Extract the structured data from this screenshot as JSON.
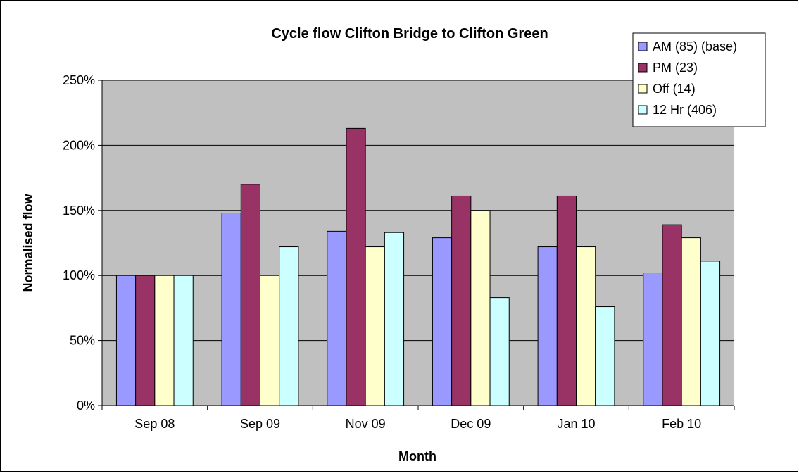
{
  "chart_data": {
    "type": "bar",
    "title": "Cycle flow Clifton Bridge to Clifton Green",
    "xlabel": "Month",
    "ylabel": "Normalised flow",
    "categories": [
      "Sep 08",
      "Sep 09",
      "Nov 09",
      "Dec 09",
      "Jan 10",
      "Feb 10"
    ],
    "series": [
      {
        "name": "AM (85) (base)",
        "color": "#9999FF",
        "values": [
          100,
          148,
          134,
          129,
          122,
          102
        ]
      },
      {
        "name": "PM (23)",
        "color": "#993366",
        "values": [
          100,
          170,
          213,
          161,
          161,
          139
        ]
      },
      {
        "name": "Off (14)",
        "color": "#FFFFCC",
        "values": [
          100,
          100,
          122,
          150,
          122,
          129
        ]
      },
      {
        "name": "12 Hr (406)",
        "color": "#CCFFFF",
        "values": [
          100,
          122,
          133,
          83,
          76,
          111
        ]
      }
    ],
    "ylim": [
      0,
      250
    ],
    "yticks": [
      0,
      50,
      100,
      150,
      200,
      250
    ],
    "ytick_labels": [
      "0%",
      "50%",
      "100%",
      "150%",
      "200%",
      "250%"
    ],
    "grid": true,
    "plot_background": "#C0C0C0",
    "legend_position": "top-right"
  }
}
